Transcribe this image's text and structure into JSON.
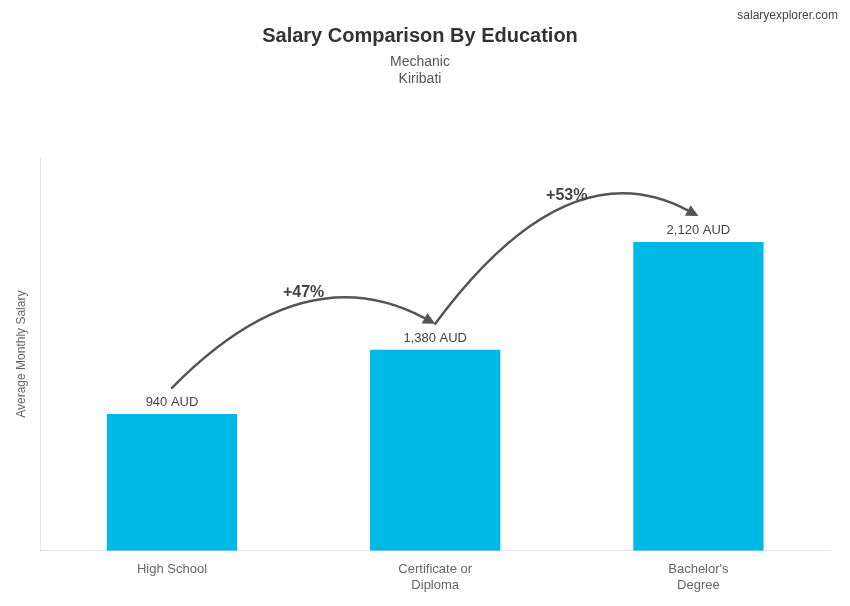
{
  "chart_data": {
    "type": "bar",
    "title": "Salary Comparison By Education",
    "subtitle": [
      "Mechanic",
      "Kiribati"
    ],
    "y_label": "Average Monthly Salary",
    "categories": [
      "High School",
      "Certificate or\nDiploma",
      "Bachelor's\nDegree"
    ],
    "values": [
      940,
      1380,
      2120
    ],
    "value_labels": [
      "940 AUD",
      "1,380 AUD",
      "2,120 AUD"
    ],
    "data_labels": true,
    "color": "#00b8e6",
    "ylim": [
      0,
      2700
    ],
    "grid": false,
    "tick_labels": "x",
    "annotations": [
      {
        "text": "+47%",
        "from": "High School",
        "to": "Certificate or\nDiploma"
      },
      {
        "text": "+53%",
        "from": "Certificate or\nDiploma",
        "to": "Bachelor's\nDegree"
      },
      {
        "text": "salary"
      },
      {
        "text": "explorer.com"
      }
    ]
  }
}
